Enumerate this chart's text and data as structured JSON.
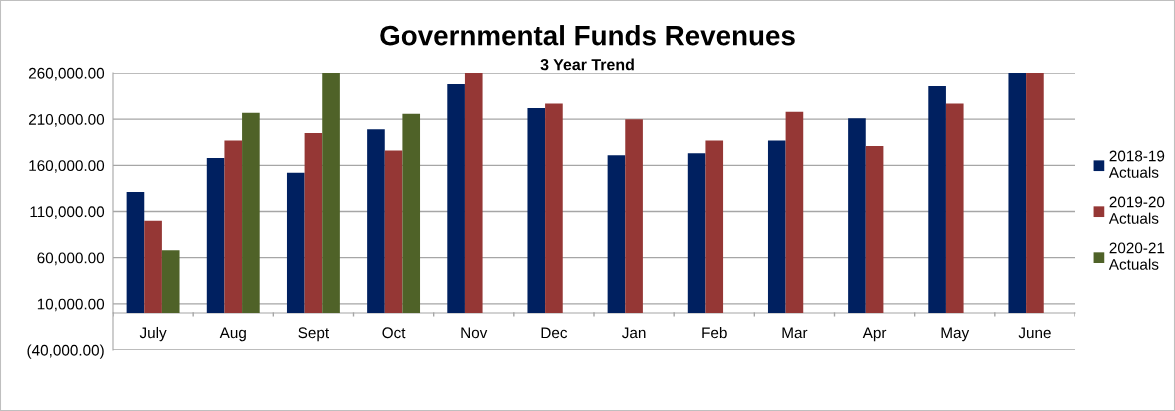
{
  "chart_data": {
    "type": "bar",
    "title": "Governmental Funds Revenues",
    "subtitle": "3 Year Trend",
    "categories": [
      "July",
      "Aug",
      "Sept",
      "Oct",
      "Nov",
      "Dec",
      "Jan",
      "Feb",
      "Mar",
      "Apr",
      "May",
      "June"
    ],
    "series": [
      {
        "name": "2018-19\nActuals",
        "color": "#002060",
        "values": [
          131000,
          168000,
          152000,
          199000,
          248000,
          222000,
          171000,
          173000,
          187000,
          211000,
          246000,
          260000
        ]
      },
      {
        "name": "2019-20\nActuals",
        "color": "#953735",
        "values": [
          100000,
          187000,
          195000,
          176000,
          260000,
          227000,
          210000,
          187000,
          218000,
          181000,
          227000,
          260000
        ]
      },
      {
        "name": "2020-21\nActuals",
        "color": "#4f6228",
        "values": [
          68000,
          217000,
          260000,
          216000,
          null,
          null,
          null,
          null,
          null,
          null,
          null,
          null
        ]
      }
    ],
    "ylim": [
      -40000,
      260000
    ],
    "yticks": [
      {
        "value": -40000,
        "label": "(40,000.00)"
      },
      {
        "value": 10000,
        "label": "10,000.00"
      },
      {
        "value": 60000,
        "label": "60,000.00"
      },
      {
        "value": 110000,
        "label": "110,000.00"
      },
      {
        "value": 160000,
        "label": "160,000.00"
      },
      {
        "value": 210000,
        "label": "210,000.00"
      },
      {
        "value": 260000,
        "label": "260,000.00"
      }
    ],
    "grid": "y",
    "legend": "right"
  }
}
